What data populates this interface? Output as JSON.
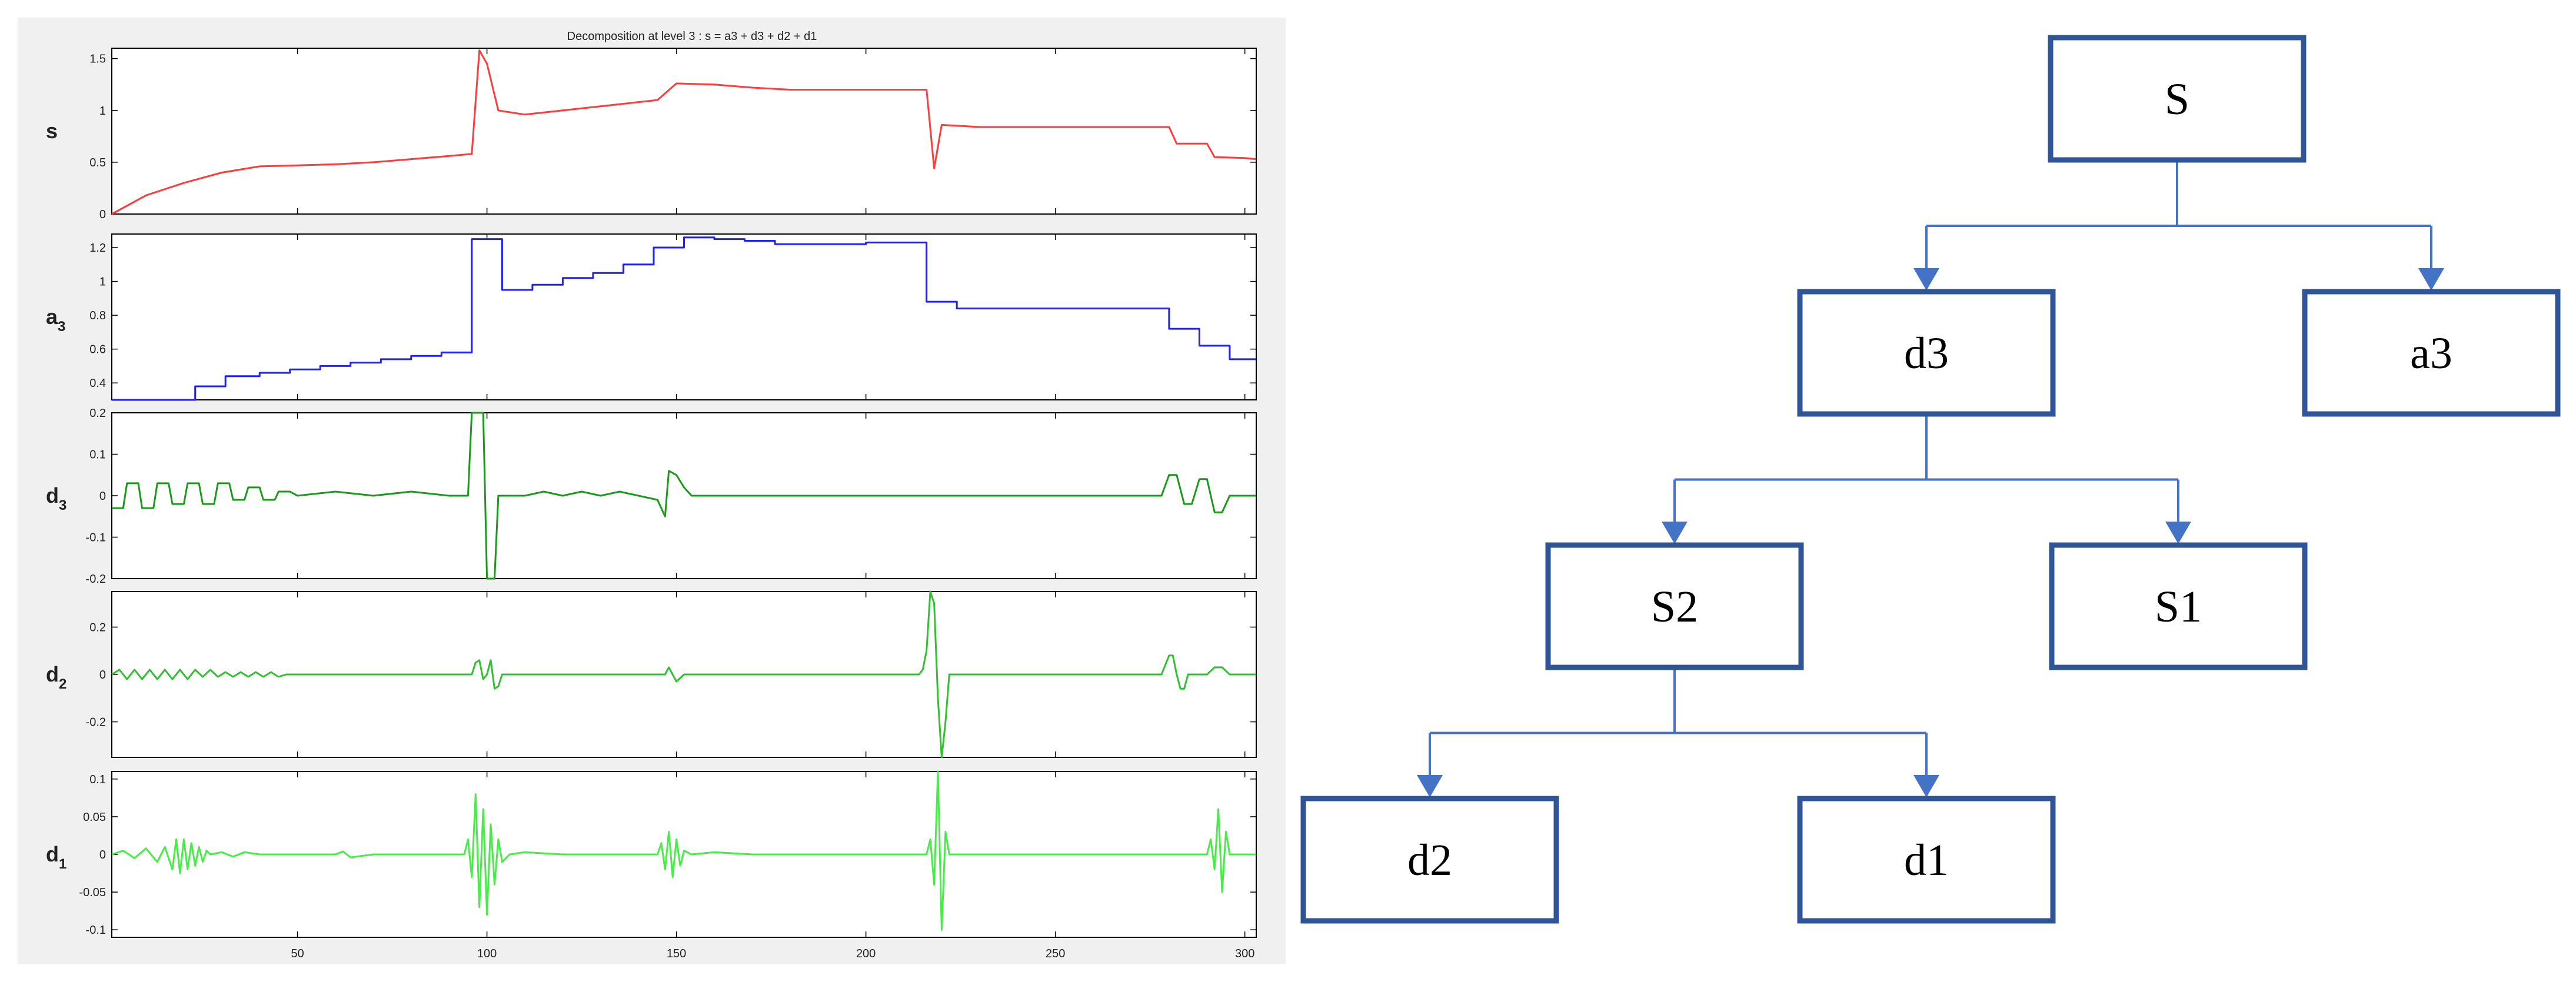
{
  "chart_data": [
    {
      "type": "line",
      "title": "Decomposition at level 3 : s = a3 + d3 + d2 + d1",
      "xlim": [
        1,
        303
      ],
      "xticks": [
        50,
        100,
        150,
        200,
        250,
        300
      ],
      "grid": false,
      "series": [
        {
          "label": "s",
          "label_sub": "",
          "color": "#ff3c3c",
          "ylim": [
            0,
            1.6
          ],
          "yticks": [
            "0",
            "0.5",
            "1",
            "1.5"
          ],
          "ytick_values": [
            0,
            0.5,
            1,
            1.5
          ],
          "x": [
            1,
            10,
            20,
            30,
            40,
            50,
            60,
            70,
            80,
            90,
            96,
            98,
            100,
            103,
            110,
            120,
            130,
            140,
            145,
            150,
            160,
            170,
            180,
            190,
            200,
            210,
            216,
            218,
            220,
            230,
            240,
            250,
            260,
            270,
            280,
            282,
            290,
            292,
            300,
            303
          ],
          "y": [
            0,
            0.18,
            0.3,
            0.4,
            0.46,
            0.47,
            0.48,
            0.5,
            0.53,
            0.56,
            0.58,
            1.58,
            1.45,
            1.0,
            0.96,
            1.0,
            1.04,
            1.08,
            1.1,
            1.26,
            1.25,
            1.22,
            1.2,
            1.2,
            1.2,
            1.2,
            1.2,
            0.44,
            0.86,
            0.84,
            0.84,
            0.84,
            0.84,
            0.84,
            0.84,
            0.68,
            0.68,
            0.55,
            0.54,
            0.53
          ]
        },
        {
          "label": "a",
          "label_sub": "3",
          "color": "#2020ff",
          "ylim": [
            0.3,
            1.28
          ],
          "yticks": [
            "0.4",
            "0.6",
            "0.8",
            "1",
            "1.2"
          ],
          "ytick_values": [
            0.4,
            0.6,
            0.8,
            1,
            1.2
          ],
          "x": [
            1,
            23,
            23,
            31,
            31,
            40,
            40,
            48,
            48,
            56,
            56,
            64,
            64,
            72,
            72,
            80,
            80,
            88,
            88,
            96,
            96,
            104,
            104,
            112,
            112,
            120,
            120,
            128,
            128,
            136,
            136,
            144,
            144,
            152,
            152,
            160,
            160,
            168,
            168,
            176,
            176,
            184,
            184,
            200,
            200,
            216,
            216,
            224,
            224,
            280,
            280,
            288,
            288,
            296,
            296,
            303
          ],
          "y": [
            0.3,
            0.3,
            0.38,
            0.38,
            0.44,
            0.44,
            0.46,
            0.46,
            0.48,
            0.48,
            0.5,
            0.5,
            0.52,
            0.52,
            0.54,
            0.54,
            0.56,
            0.56,
            0.58,
            0.58,
            1.25,
            1.25,
            0.95,
            0.95,
            0.98,
            0.98,
            1.02,
            1.02,
            1.05,
            1.05,
            1.1,
            1.1,
            1.2,
            1.2,
            1.26,
            1.26,
            1.25,
            1.25,
            1.24,
            1.24,
            1.22,
            1.22,
            1.22,
            1.22,
            1.23,
            1.23,
            0.88,
            0.88,
            0.84,
            0.84,
            0.72,
            0.72,
            0.62,
            0.62,
            0.54,
            0.54
          ]
        },
        {
          "label": "d",
          "label_sub": "3",
          "color": "#1a9a1a",
          "ylim": [
            -0.2,
            0.2
          ],
          "yticks": [
            "-0.2",
            "-0.1",
            "0",
            "0.1",
            "0.2"
          ],
          "ytick_values": [
            -0.2,
            -0.1,
            0,
            0.1,
            0.2
          ],
          "x": [
            1,
            4,
            5,
            8,
            9,
            12,
            13,
            16,
            17,
            20,
            21,
            24,
            25,
            28,
            29,
            32,
            33,
            36,
            37,
            40,
            41,
            44,
            45,
            48,
            50,
            60,
            70,
            80,
            90,
            95,
            96,
            97,
            99,
            100,
            101,
            102,
            103,
            104,
            110,
            115,
            120,
            125,
            130,
            135,
            140,
            145,
            147,
            148,
            150,
            152,
            154,
            160,
            170,
            180,
            190,
            200,
            210,
            215,
            218,
            222,
            230,
            250,
            278,
            280,
            282,
            284,
            286,
            288,
            290,
            292,
            294,
            296,
            298,
            303
          ],
          "y": [
            -0.03,
            -0.03,
            0.03,
            0.03,
            -0.03,
            -0.03,
            0.03,
            0.03,
            -0.02,
            -0.02,
            0.03,
            0.03,
            -0.02,
            -0.02,
            0.03,
            0.03,
            -0.01,
            -0.01,
            0.02,
            0.02,
            -0.01,
            -0.01,
            0.01,
            0.01,
            0.0,
            0.01,
            0.0,
            0.01,
            0.0,
            0.0,
            0.2,
            0.2,
            0.2,
            -0.2,
            -0.2,
            -0.2,
            0.0,
            0.0,
            0.0,
            0.01,
            0.0,
            0.01,
            0.0,
            0.01,
            0.0,
            -0.01,
            -0.05,
            0.06,
            0.05,
            0.02,
            0.0,
            0.0,
            0.0,
            0.0,
            0.0,
            0.0,
            0.0,
            0.0,
            0.0,
            0.0,
            0.0,
            0.0,
            0.0,
            0.05,
            0.05,
            -0.02,
            -0.02,
            0.04,
            0.04,
            -0.04,
            -0.04,
            0.0,
            0.0,
            0.0
          ]
        },
        {
          "label": "d",
          "label_sub": "2",
          "color": "#30c030",
          "ylim": [
            -0.35,
            0.35
          ],
          "yticks": [
            "-0.2",
            "0",
            "0.2"
          ],
          "ytick_values": [
            -0.2,
            0,
            0.2
          ],
          "x": [
            1,
            3,
            5,
            7,
            9,
            11,
            13,
            15,
            17,
            19,
            21,
            23,
            25,
            27,
            29,
            31,
            33,
            35,
            37,
            39,
            41,
            43,
            45,
            47,
            50,
            60,
            70,
            80,
            90,
            96,
            97,
            98,
            99,
            100,
            101,
            102,
            103,
            104,
            106,
            120,
            140,
            147,
            148,
            150,
            152,
            160,
            180,
            200,
            214,
            215,
            216,
            217,
            218,
            219,
            220,
            221,
            222,
            230,
            260,
            278,
            280,
            281,
            282,
            283,
            284,
            285,
            286,
            290,
            292,
            294,
            296,
            303
          ],
          "y": [
            0,
            0.02,
            -0.02,
            0.02,
            -0.02,
            0.02,
            -0.02,
            0.02,
            -0.02,
            0.02,
            -0.02,
            0.02,
            -0.01,
            0.02,
            -0.01,
            0.01,
            -0.01,
            0.01,
            -0.01,
            0.01,
            -0.01,
            0.01,
            -0.01,
            0.0,
            0.0,
            0.0,
            0.0,
            0.0,
            0.0,
            0.0,
            0.05,
            0.06,
            -0.02,
            0.0,
            0.06,
            -0.06,
            -0.05,
            0.0,
            0.0,
            0.0,
            0.0,
            0.0,
            0.03,
            -0.03,
            0.0,
            0.0,
            0.0,
            0.0,
            0.0,
            0.02,
            0.1,
            0.35,
            0.3,
            -0.1,
            -0.35,
            -0.2,
            0.0,
            0.0,
            0.0,
            0.0,
            0.08,
            0.08,
            0.0,
            -0.06,
            -0.06,
            0.0,
            0.0,
            0.0,
            0.03,
            0.03,
            0.0,
            0.0
          ]
        },
        {
          "label": "d",
          "label_sub": "1",
          "color": "#44ee44",
          "ylim": [
            -0.11,
            0.11
          ],
          "yticks": [
            "-0.1",
            "-0.05",
            "0",
            "0.05",
            "0.1"
          ],
          "ytick_values": [
            -0.1,
            -0.05,
            0,
            0.05,
            0.1
          ],
          "x": [
            1,
            4,
            7,
            10,
            13,
            15,
            17,
            18,
            19,
            20,
            21,
            22,
            23,
            24,
            25,
            26,
            27,
            30,
            33,
            36,
            40,
            50,
            60,
            62,
            64,
            70,
            80,
            90,
            94,
            95,
            96,
            97,
            98,
            99,
            100,
            101,
            102,
            103,
            104,
            106,
            110,
            120,
            130,
            145,
            146,
            147,
            148,
            149,
            150,
            151,
            152,
            154,
            160,
            170,
            180,
            200,
            216,
            217,
            218,
            219,
            220,
            221,
            222,
            230,
            260,
            290,
            291,
            292,
            293,
            294,
            295,
            296,
            303
          ],
          "y": [
            0,
            0.005,
            -0.005,
            0.008,
            -0.01,
            0.01,
            -0.02,
            0.02,
            -0.025,
            0.02,
            -0.02,
            0.015,
            -0.015,
            0.01,
            -0.01,
            0.005,
            0,
            0.003,
            -0.003,
            0.003,
            0,
            0,
            0,
            0.004,
            -0.004,
            0,
            0,
            0,
            0,
            0.02,
            -0.03,
            0.08,
            -0.07,
            0.06,
            -0.08,
            0.04,
            -0.04,
            0.02,
            -0.01,
            0,
            0.003,
            0,
            0,
            0,
            0.015,
            -0.02,
            0.03,
            -0.03,
            0.02,
            -0.015,
            0.005,
            0,
            0.003,
            0,
            0,
            0,
            0,
            0.02,
            -0.04,
            0.11,
            -0.1,
            0.03,
            0,
            0,
            0,
            0,
            0.02,
            -0.02,
            0.06,
            -0.05,
            0.03,
            0,
            0
          ]
        }
      ]
    },
    {
      "type": "diagram",
      "nodes": [
        {
          "id": "S",
          "label": "S"
        },
        {
          "id": "d3",
          "label": "d3"
        },
        {
          "id": "a3",
          "label": "a3"
        },
        {
          "id": "S2",
          "label": "S2"
        },
        {
          "id": "S1",
          "label": "S1"
        },
        {
          "id": "d2",
          "label": "d2"
        },
        {
          "id": "d1",
          "label": "d1"
        }
      ],
      "edges": [
        {
          "from": "S",
          "to": "d3"
        },
        {
          "from": "S",
          "to": "a3"
        },
        {
          "from": "d3",
          "to": "S2"
        },
        {
          "from": "d3",
          "to": "S1"
        },
        {
          "from": "S2",
          "to": "d2"
        },
        {
          "from": "S2",
          "to": "d1"
        }
      ],
      "colors": {
        "box_border": "#2f5597",
        "connector": "#4472c4"
      }
    }
  ]
}
